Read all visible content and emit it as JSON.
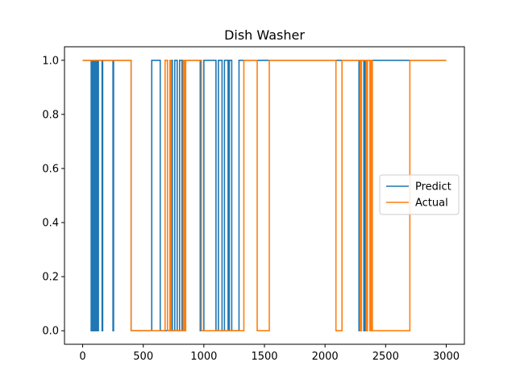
{
  "chart_data": {
    "type": "line",
    "title": "Dish Washer",
    "xlabel": "",
    "ylabel": "",
    "xlim": [
      -150,
      3150
    ],
    "ylim": [
      -0.05,
      1.05
    ],
    "x_ticks": [
      0,
      500,
      1000,
      1500,
      2000,
      2500,
      3000
    ],
    "y_ticks": [
      0.0,
      0.2,
      0.4,
      0.6,
      0.8,
      1.0
    ],
    "x_tick_labels": [
      "0",
      "500",
      "1000",
      "1500",
      "2000",
      "2500",
      "3000"
    ],
    "y_tick_labels": [
      "0.0",
      "0.2",
      "0.4",
      "0.6",
      "0.8",
      "1.0"
    ],
    "grid": false,
    "legend_position": "center-right",
    "series": [
      {
        "name": "Predict",
        "color": "#1f77b4",
        "x": [
          0,
          70,
          70,
          75,
          75,
          80,
          80,
          85,
          85,
          95,
          95,
          100,
          100,
          105,
          105,
          110,
          110,
          115,
          115,
          120,
          120,
          125,
          125,
          130,
          130,
          160,
          160,
          165,
          165,
          250,
          250,
          255,
          255,
          400,
          400,
          570,
          570,
          640,
          640,
          730,
          730,
          740,
          740,
          760,
          760,
          780,
          780,
          800,
          800,
          820,
          820,
          840,
          840,
          970,
          970,
          1000,
          1000,
          1100,
          1100,
          1120,
          1120,
          1150,
          1150,
          1170,
          1170,
          1200,
          1200,
          1210,
          1210,
          1230,
          1230,
          1290,
          1290,
          2280,
          2280,
          2300,
          2300,
          2320,
          2320,
          2330,
          2330,
          2380,
          2380,
          2390,
          2390,
          3000
        ],
        "y": [
          1,
          1,
          0,
          0,
          1,
          1,
          0,
          0,
          1,
          1,
          0,
          0,
          1,
          1,
          0,
          0,
          1,
          1,
          0,
          0,
          1,
          1,
          0,
          0,
          1,
          1,
          0,
          0,
          1,
          1,
          0,
          0,
          1,
          1,
          0,
          0,
          1,
          1,
          0,
          0,
          1,
          1,
          0,
          0,
          1,
          1,
          0,
          0,
          1,
          1,
          0,
          0,
          1,
          1,
          0,
          0,
          1,
          1,
          0,
          0,
          1,
          1,
          0,
          0,
          1,
          1,
          0,
          0,
          1,
          1,
          0,
          0,
          1,
          1,
          0,
          0,
          1,
          1,
          0,
          0,
          1,
          1,
          0,
          0,
          1,
          1
        ]
      },
      {
        "name": "Actual",
        "color": "#ff7f0e",
        "x": [
          0,
          400,
          400,
          680,
          680,
          700,
          700,
          720,
          720,
          730,
          730,
          830,
          830,
          840,
          840,
          850,
          850,
          980,
          980,
          1330,
          1330,
          1440,
          1440,
          1540,
          1540,
          2090,
          2090,
          2140,
          2140,
          2290,
          2290,
          2300,
          2300,
          2340,
          2340,
          2350,
          2350,
          2370,
          2370,
          2380,
          2380,
          2390,
          2390,
          2700,
          2700,
          3000
        ],
        "y": [
          1,
          1,
          0,
          0,
          1,
          1,
          0,
          0,
          1,
          1,
          0,
          0,
          1,
          1,
          0,
          0,
          1,
          1,
          0,
          0,
          1,
          1,
          0,
          0,
          1,
          1,
          0,
          0,
          1,
          1,
          0,
          0,
          1,
          1,
          0,
          0,
          1,
          1,
          0,
          0,
          1,
          1,
          0,
          0,
          1,
          1
        ]
      }
    ]
  }
}
